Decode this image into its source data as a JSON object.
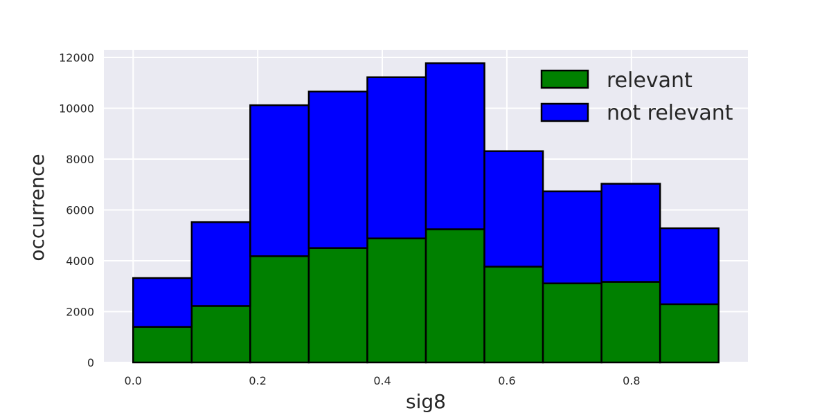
{
  "chart_data": {
    "type": "bar",
    "stacked": true,
    "title": "",
    "xlabel": "sig8",
    "ylabel": "occurrence",
    "xlim": [
      -0.047,
      0.987
    ],
    "ylim": [
      0,
      12300
    ],
    "x_ticks": [
      0.0,
      0.2,
      0.4,
      0.6,
      0.8
    ],
    "x_tick_labels": [
      "0.0",
      "0.2",
      "0.4",
      "0.6",
      "0.8"
    ],
    "y_ticks": [
      0,
      2000,
      4000,
      6000,
      8000,
      10000,
      12000
    ],
    "y_tick_labels": [
      "0",
      "2000",
      "4000",
      "6000",
      "8000",
      "10000",
      "12000"
    ],
    "bin_edges": [
      0.0,
      0.094,
      0.188,
      0.282,
      0.376,
      0.47,
      0.564,
      0.658,
      0.752,
      0.846,
      0.94
    ],
    "series": [
      {
        "name": "relevant",
        "color": "#008000",
        "values": [
          1400,
          2220,
          4180,
          4500,
          4880,
          5240,
          3770,
          3110,
          3170,
          2290
        ]
      },
      {
        "name": "not relevant",
        "color": "#0000ff",
        "values": [
          1920,
          3300,
          5940,
          6160,
          6340,
          6530,
          4540,
          3620,
          3860,
          2990
        ]
      }
    ],
    "grid": true,
    "background": "#eaeaf2",
    "legend_position": "top-right"
  }
}
